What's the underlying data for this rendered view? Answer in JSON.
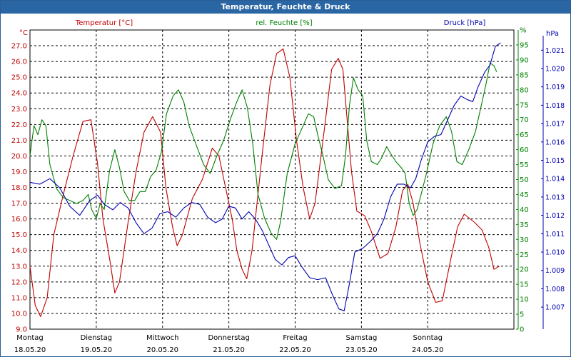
{
  "window": {
    "title": "Temperatur, Feuchte & Druck"
  },
  "colors": {
    "temperature": "#c00000",
    "humidity": "#008000",
    "pressure": "#0000b0",
    "grid": "#000000"
  },
  "chart_data": {
    "type": "line",
    "title": "Temperatur, Feuchte & Druck",
    "x_range_days": [
      0,
      7.3
    ],
    "x_ticks": [
      {
        "day": "Montag",
        "date": "18.05.20",
        "pos": 0.0
      },
      {
        "day": "Dienstag",
        "date": "19.05.20",
        "pos": 1.0
      },
      {
        "day": "Mittwoch",
        "date": "20.05.20",
        "pos": 2.0
      },
      {
        "day": "Donnerstag",
        "date": "21.05.20",
        "pos": 3.0
      },
      {
        "day": "Freitag",
        "date": "22.05.20",
        "pos": 4.0
      },
      {
        "day": "Samstag",
        "date": "23.05.20",
        "pos": 5.0
      },
      {
        "day": "Sonntag",
        "date": "24.05.20",
        "pos": 6.0
      }
    ],
    "axes": {
      "temperature": {
        "label": "Temperatur [°C]",
        "unit": "°C",
        "range": [
          9.0,
          28.0
        ],
        "ticks": [
          "27.0",
          "26.0",
          "25.0",
          "24.0",
          "23.0",
          "22.0",
          "21.0",
          "20.0",
          "19.0",
          "18.0",
          "17.0",
          "16.0",
          "15.0",
          "14.0",
          "13.0",
          "12.0",
          "11.0",
          "10.0",
          "9.0"
        ]
      },
      "humidity": {
        "label": "rel. Feuchte [%]",
        "unit": "%",
        "range": [
          0,
          100
        ],
        "ticks": [
          "95",
          "90",
          "85",
          "80",
          "75",
          "70",
          "65",
          "60",
          "55",
          "50",
          "45",
          "40",
          "35",
          "30",
          "25",
          "20",
          "15",
          "10",
          "5",
          "0"
        ]
      },
      "pressure": {
        "label": "Druck [hPa]",
        "unit": "hPa",
        "range": [
          1.0058,
          1.0221
        ],
        "ticks": [
          "1.021",
          "1.020",
          "1.019",
          "1.018",
          "1.017",
          "1.016",
          "1.015",
          "1.014",
          "1.013",
          "1.012",
          "1.011",
          "1.010",
          "1.009",
          "1.008",
          "1.007"
        ]
      }
    },
    "series": [
      {
        "name": "Temperatur [°C]",
        "axis": "temperature",
        "points": [
          [
            0.0,
            13.0
          ],
          [
            0.08,
            10.5
          ],
          [
            0.16,
            9.8
          ],
          [
            0.26,
            11.0
          ],
          [
            0.36,
            15.0
          ],
          [
            0.5,
            17.5
          ],
          [
            0.65,
            20.0
          ],
          [
            0.8,
            22.2
          ],
          [
            0.92,
            22.3
          ],
          [
            1.02,
            19.5
          ],
          [
            1.1,
            16.0
          ],
          [
            1.2,
            13.5
          ],
          [
            1.28,
            11.3
          ],
          [
            1.35,
            12.0
          ],
          [
            1.48,
            15.8
          ],
          [
            1.6,
            19.0
          ],
          [
            1.72,
            21.5
          ],
          [
            1.85,
            22.5
          ],
          [
            1.97,
            21.5
          ],
          [
            2.05,
            18.0
          ],
          [
            2.15,
            15.5
          ],
          [
            2.22,
            14.3
          ],
          [
            2.3,
            15.0
          ],
          [
            2.45,
            17.3
          ],
          [
            2.6,
            18.5
          ],
          [
            2.75,
            20.5
          ],
          [
            2.85,
            20.0
          ],
          [
            2.95,
            18.0
          ],
          [
            3.05,
            16.0
          ],
          [
            3.12,
            14.0
          ],
          [
            3.2,
            12.8
          ],
          [
            3.27,
            12.2
          ],
          [
            3.35,
            14.0
          ],
          [
            3.5,
            20.0
          ],
          [
            3.62,
            24.5
          ],
          [
            3.72,
            26.5
          ],
          [
            3.82,
            26.8
          ],
          [
            3.92,
            25.0
          ],
          [
            4.02,
            21.0
          ],
          [
            4.12,
            18.0
          ],
          [
            4.22,
            16.0
          ],
          [
            4.3,
            17.0
          ],
          [
            4.45,
            22.0
          ],
          [
            4.55,
            25.5
          ],
          [
            4.65,
            26.2
          ],
          [
            4.72,
            25.5
          ],
          [
            4.78,
            22.5
          ],
          [
            4.85,
            19.0
          ],
          [
            4.93,
            16.5
          ],
          [
            5.05,
            16.2
          ],
          [
            5.15,
            15.2
          ],
          [
            5.28,
            13.5
          ],
          [
            5.4,
            13.8
          ],
          [
            5.52,
            15.5
          ],
          [
            5.62,
            17.8
          ],
          [
            5.7,
            18.2
          ],
          [
            5.78,
            17.0
          ],
          [
            5.88,
            14.5
          ],
          [
            6.0,
            12.0
          ],
          [
            6.12,
            10.7
          ],
          [
            6.22,
            10.8
          ],
          [
            6.35,
            13.5
          ],
          [
            6.45,
            15.5
          ],
          [
            6.55,
            16.3
          ],
          [
            6.7,
            15.8
          ],
          [
            6.82,
            15.3
          ],
          [
            6.92,
            14.2
          ],
          [
            7.0,
            12.8
          ],
          [
            7.08,
            13.0
          ]
        ]
      },
      {
        "name": "rel. Feuchte [%]",
        "axis": "humidity",
        "points": [
          [
            0.0,
            58
          ],
          [
            0.06,
            68
          ],
          [
            0.12,
            65
          ],
          [
            0.18,
            70
          ],
          [
            0.24,
            68
          ],
          [
            0.3,
            55
          ],
          [
            0.4,
            47
          ],
          [
            0.5,
            44
          ],
          [
            0.6,
            43
          ],
          [
            0.7,
            42
          ],
          [
            0.8,
            43
          ],
          [
            0.88,
            45
          ],
          [
            0.93,
            40
          ],
          [
            1.0,
            37
          ],
          [
            1.06,
            42
          ],
          [
            1.12,
            40
          ],
          [
            1.2,
            53
          ],
          [
            1.28,
            60
          ],
          [
            1.35,
            54
          ],
          [
            1.42,
            46
          ],
          [
            1.5,
            43
          ],
          [
            1.58,
            43
          ],
          [
            1.66,
            46
          ],
          [
            1.74,
            46
          ],
          [
            1.82,
            51
          ],
          [
            1.9,
            53
          ],
          [
            1.98,
            59
          ],
          [
            2.06,
            72
          ],
          [
            2.16,
            78
          ],
          [
            2.24,
            80
          ],
          [
            2.32,
            76
          ],
          [
            2.4,
            68
          ],
          [
            2.5,
            62
          ],
          [
            2.62,
            55
          ],
          [
            2.72,
            52
          ],
          [
            2.82,
            58
          ],
          [
            2.92,
            63
          ],
          [
            3.02,
            70
          ],
          [
            3.12,
            76
          ],
          [
            3.2,
            80
          ],
          [
            3.28,
            74
          ],
          [
            3.36,
            62
          ],
          [
            3.44,
            45
          ],
          [
            3.54,
            37
          ],
          [
            3.64,
            32
          ],
          [
            3.72,
            30
          ],
          [
            3.78,
            36
          ],
          [
            3.88,
            52
          ],
          [
            4.0,
            62
          ],
          [
            4.1,
            67
          ],
          [
            4.2,
            72
          ],
          [
            4.28,
            71
          ],
          [
            4.34,
            65
          ],
          [
            4.42,
            58
          ],
          [
            4.5,
            50
          ],
          [
            4.6,
            47
          ],
          [
            4.7,
            48
          ],
          [
            4.76,
            58
          ],
          [
            4.82,
            75
          ],
          [
            4.88,
            84
          ],
          [
            4.95,
            80
          ],
          [
            5.02,
            78
          ],
          [
            5.08,
            63
          ],
          [
            5.15,
            56
          ],
          [
            5.24,
            55
          ],
          [
            5.3,
            57
          ],
          [
            5.38,
            61
          ],
          [
            5.46,
            58
          ],
          [
            5.52,
            56
          ],
          [
            5.6,
            54
          ],
          [
            5.66,
            52
          ],
          [
            5.72,
            42
          ],
          [
            5.78,
            38
          ],
          [
            5.84,
            40
          ],
          [
            5.9,
            45
          ],
          [
            5.98,
            52
          ],
          [
            6.08,
            62
          ],
          [
            6.18,
            68
          ],
          [
            6.28,
            71
          ],
          [
            6.36,
            66
          ],
          [
            6.44,
            56
          ],
          [
            6.52,
            55
          ],
          [
            6.62,
            60
          ],
          [
            6.72,
            66
          ],
          [
            6.8,
            74
          ],
          [
            6.88,
            82
          ],
          [
            6.94,
            89
          ],
          [
            7.0,
            88
          ],
          [
            7.04,
            86
          ]
        ]
      },
      {
        "name": "Druck [hPa]",
        "axis": "pressure",
        "points": [
          [
            0.0,
            1.0138
          ],
          [
            0.15,
            1.0137
          ],
          [
            0.3,
            1.014
          ],
          [
            0.45,
            1.0135
          ],
          [
            0.6,
            1.0125
          ],
          [
            0.75,
            1.012
          ],
          [
            0.9,
            1.0128
          ],
          [
            1.02,
            1.0131
          ],
          [
            1.12,
            1.0126
          ],
          [
            1.25,
            1.0123
          ],
          [
            1.36,
            1.0127
          ],
          [
            1.48,
            1.0124
          ],
          [
            1.6,
            1.0116
          ],
          [
            1.72,
            1.011
          ],
          [
            1.84,
            1.0113
          ],
          [
            1.96,
            1.0121
          ],
          [
            2.08,
            1.0122
          ],
          [
            2.2,
            1.0119
          ],
          [
            2.32,
            1.0124
          ],
          [
            2.44,
            1.0127
          ],
          [
            2.56,
            1.0126
          ],
          [
            2.68,
            1.0119
          ],
          [
            2.8,
            1.0116
          ],
          [
            2.9,
            1.0118
          ],
          [
            3.0,
            1.0125
          ],
          [
            3.1,
            1.0124
          ],
          [
            3.2,
            1.0118
          ],
          [
            3.3,
            1.0122
          ],
          [
            3.4,
            1.0118
          ],
          [
            3.5,
            1.0112
          ],
          [
            3.6,
            1.0104
          ],
          [
            3.7,
            1.0096
          ],
          [
            3.8,
            1.0093
          ],
          [
            3.9,
            1.0097
          ],
          [
            4.0,
            1.0098
          ],
          [
            4.1,
            1.0092
          ],
          [
            4.22,
            1.0086
          ],
          [
            4.34,
            1.0085
          ],
          [
            4.46,
            1.0086
          ],
          [
            4.56,
            1.0077
          ],
          [
            4.66,
            1.0069
          ],
          [
            4.74,
            1.0068
          ],
          [
            4.82,
            1.0083
          ],
          [
            4.9,
            1.01
          ],
          [
            5.02,
            1.0102
          ],
          [
            5.14,
            1.0106
          ],
          [
            5.24,
            1.011
          ],
          [
            5.34,
            1.0118
          ],
          [
            5.44,
            1.013
          ],
          [
            5.54,
            1.0137
          ],
          [
            5.64,
            1.0137
          ],
          [
            5.74,
            1.0135
          ],
          [
            5.82,
            1.014
          ],
          [
            5.9,
            1.015
          ],
          [
            6.0,
            1.016
          ],
          [
            6.1,
            1.0163
          ],
          [
            6.2,
            1.0164
          ],
          [
            6.3,
            1.0172
          ],
          [
            6.4,
            1.018
          ],
          [
            6.5,
            1.0185
          ],
          [
            6.6,
            1.0183
          ],
          [
            6.68,
            1.0182
          ],
          [
            6.76,
            1.019
          ],
          [
            6.86,
            1.0198
          ],
          [
            6.94,
            1.0202
          ],
          [
            7.02,
            1.0212
          ],
          [
            7.1,
            1.0214
          ]
        ]
      }
    ],
    "grid": true
  }
}
